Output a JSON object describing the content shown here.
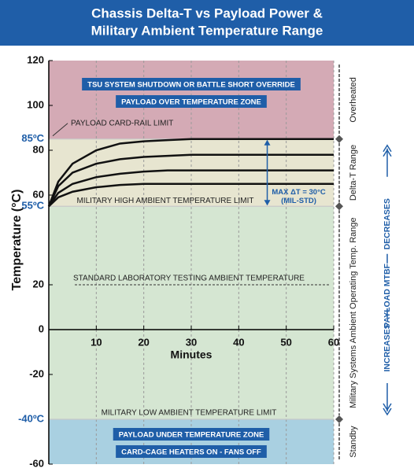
{
  "chart_data": {
    "type": "line",
    "title": [
      "Chassis Delta-T vs Payload Power &",
      "Military Ambient Temperature Range"
    ],
    "xlabel": "Minutes",
    "ylabel": "Temperature (°C)",
    "x": [
      0,
      2,
      5,
      10,
      15,
      20,
      25,
      30,
      40,
      50,
      60
    ],
    "series": [
      {
        "color": "#111111",
        "values": [
          55,
          66,
          74,
          80,
          83,
          84,
          84.5,
          85,
          85,
          85,
          85
        ]
      },
      {
        "color": "#111111",
        "values": [
          55,
          64,
          70,
          74,
          76,
          77,
          77.5,
          78,
          78,
          78,
          78
        ]
      },
      {
        "color": "#111111",
        "values": [
          55,
          61,
          65,
          68,
          69.5,
          70.5,
          71,
          71,
          71,
          71,
          71
        ]
      },
      {
        "color": "#111111",
        "values": [
          55,
          59,
          61.5,
          63.5,
          64.5,
          65,
          65,
          65,
          65,
          65,
          65
        ]
      }
    ],
    "xlim": [
      0,
      60
    ],
    "xticks": [
      10,
      20,
      30,
      40,
      50,
      60
    ],
    "ylim": [
      -60,
      120
    ],
    "yticks": [
      120,
      100,
      80,
      60,
      20,
      0,
      -20,
      -60
    ],
    "grid": true,
    "zones": [
      {
        "range": [
          85,
          120
        ],
        "color": "#d4aab5",
        "boxes": [
          "TSU SYSTEM SHUTDOWN OR BATTLE SHORT OVERRIDE",
          "PAYLOAD OVER TEMPERATURE ZONE"
        ]
      },
      {
        "range": [
          55,
          85
        ],
        "color": "#e7e5d0",
        "boxes": []
      },
      {
        "range": [
          -40,
          55
        ],
        "color": "#d5e6d2",
        "boxes": []
      },
      {
        "range": [
          -60,
          -40
        ],
        "color": "#a9d0e1",
        "boxes": [
          "PAYLOAD UNDER TEMPERATURE ZONE",
          "CARD-CAGE HEATERS ON - FANS OFF"
        ]
      }
    ],
    "limits": [
      {
        "value": 85,
        "label": "85ºC",
        "text": "PAYLOAD CARD-RAIL LIMIT"
      },
      {
        "value": 55,
        "label": "55ºC",
        "text": "MILITARY HIGH AMBIENT TEMPERATURE LIMIT"
      },
      {
        "value": -40,
        "label": "-40ºC",
        "text": "MILITARY LOW AMBIENT TEMPERATURE  LIMIT"
      }
    ],
    "reference": {
      "value": 20,
      "text": "STANDARD LABORATORY TESTING AMBIENT TEMPERATURE"
    },
    "arrow": {
      "x": 46,
      "from": 55,
      "to": 85,
      "text": [
        "MAX ΔT = 30°C",
        "(MIL-STD)"
      ]
    },
    "ranges": [
      {
        "range": [
          85,
          120
        ],
        "label": "Overheated"
      },
      {
        "range": [
          55,
          85
        ],
        "label": "Delta-T Range"
      },
      {
        "range": [
          -40,
          55
        ],
        "label": "Military Systems  Ambient Operating Temp. Range"
      },
      {
        "range": [
          -60,
          -40
        ],
        "label": "Standby"
      }
    ],
    "mtbf": [
      "INCREASES",
      "PAYLOAD MTBF",
      "DECREASES"
    ]
  }
}
